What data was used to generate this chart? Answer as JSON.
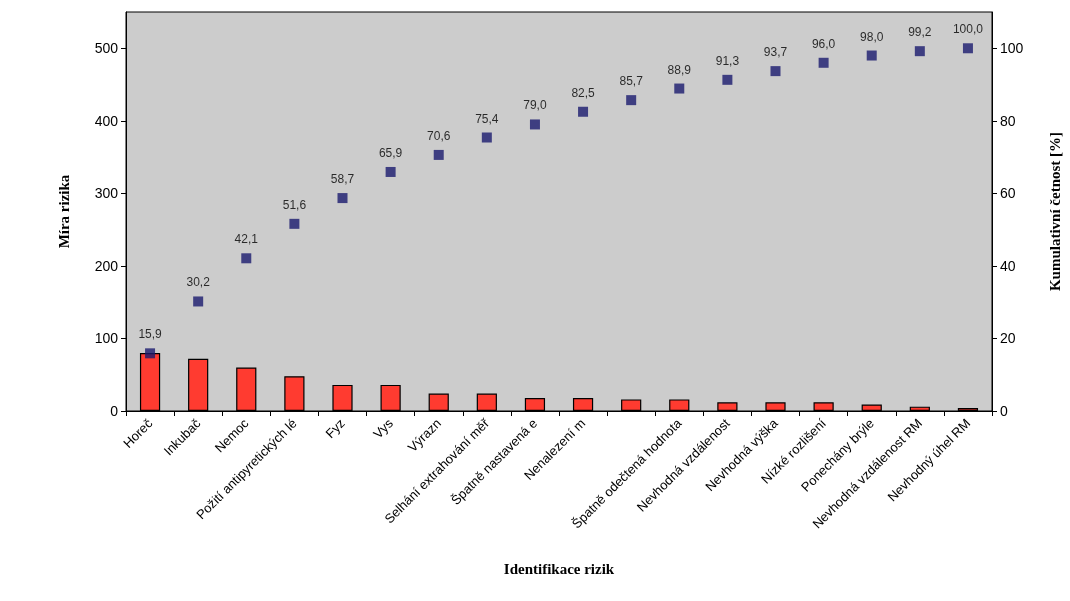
{
  "chart_data": {
    "type": "bar",
    "xlabel": "Identifikace rizik",
    "ylabel": "Míra rizika",
    "y2label": "Kumulativní četnost [%]",
    "categories": [
      "Horeč",
      "Inkubač",
      "Nemoc",
      "Požití antipyretických lé",
      "Fyz",
      "Vys",
      "Výrazn",
      "Selhání extrahování měř",
      "Špatně nastavená e",
      "Nenalezení m",
      null,
      "Špatně odečtená hodnota",
      "Nevhodná vzdálenost",
      "Nevhodná výška",
      "Nízké rozlišení",
      "Ponechány brýle",
      "Nevhodná vzdálenost RM",
      "Nevhodný úhel RM"
    ],
    "series": [
      {
        "color": "#ff3b30",
        "values": [
          80,
          72,
          60,
          48,
          36,
          36,
          24,
          24,
          18,
          18,
          16,
          16,
          12,
          12,
          12,
          9,
          6,
          4
        ]
      },
      {
        "type": "scatter",
        "axis": "y2",
        "color": "#1a1a6e",
        "values": [
          15.9,
          30.2,
          42.1,
          51.6,
          58.7,
          65.9,
          70.6,
          75.4,
          79.0,
          82.5,
          85.7,
          88.9,
          91.3,
          93.7,
          96.0,
          98.0,
          99.2,
          100.0
        ],
        "value_labels": [
          "15,9",
          "30,2",
          "42,1",
          "51,6",
          "58,7",
          "65,9",
          "70,6",
          "75,4",
          "79,0",
          "82,5",
          "85,7",
          "88,9",
          "91,3",
          "93,7",
          "96,0",
          "98,0",
          "99,2",
          "100,0"
        ]
      }
    ],
    "ylim": [
      0,
      550
    ],
    "yticks": [
      0,
      100,
      200,
      300,
      400,
      500
    ],
    "y2lim": [
      0,
      110
    ],
    "y2ticks": [
      0,
      20,
      40,
      60,
      80,
      100
    ],
    "marker": "square",
    "grid": false
  }
}
